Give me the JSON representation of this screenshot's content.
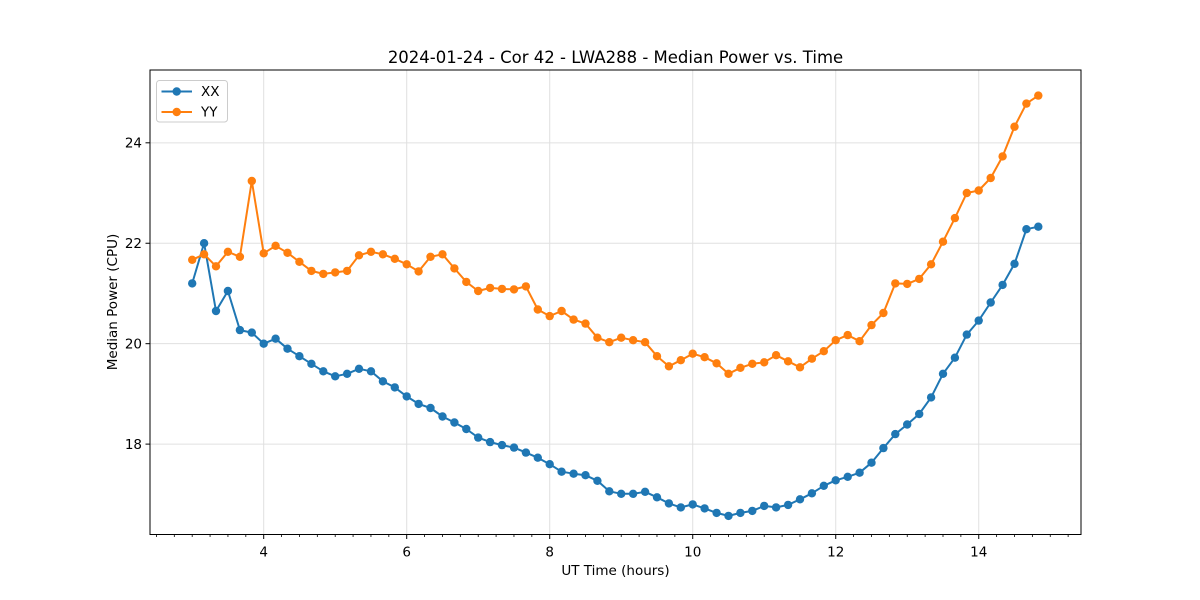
{
  "chart_data": {
    "type": "line",
    "title": "2024-01-24 - Cor 42 - LWA288 - Median Power vs. Time",
    "xlabel": "UT Time (hours)",
    "ylabel": "Median Power (CPU)",
    "xlim": [
      2.41,
      15.43
    ],
    "ylim": [
      16.2,
      25.45
    ],
    "x_major_ticks": [
      4,
      6,
      8,
      10,
      12,
      14
    ],
    "x_minor_step": 0.25,
    "y_major_ticks": [
      18,
      20,
      22,
      24
    ],
    "grid": true,
    "grid_color": "#e0e0e0",
    "background": "#ffffff",
    "legend_position": "upper left",
    "marker": "o",
    "x": {
      "start": 3.0,
      "step": 0.166667,
      "count": 72
    },
    "series": [
      {
        "name": "XX",
        "color": "#1f77b4",
        "values": [
          21.2,
          22.0,
          20.65,
          21.05,
          20.27,
          20.22,
          20.0,
          20.1,
          19.9,
          19.75,
          19.6,
          19.45,
          19.35,
          19.4,
          19.5,
          19.45,
          19.25,
          19.13,
          18.95,
          18.8,
          18.72,
          18.55,
          18.43,
          18.3,
          18.13,
          18.04,
          17.98,
          17.93,
          17.83,
          17.73,
          17.6,
          17.45,
          17.41,
          17.38,
          17.27,
          17.06,
          17.01,
          17.01,
          17.05,
          16.94,
          16.82,
          16.74,
          16.8,
          16.72,
          16.63,
          16.57,
          16.63,
          16.67,
          16.77,
          16.74,
          16.79,
          16.9,
          17.02,
          17.17,
          17.28,
          17.35,
          17.43,
          17.63,
          17.92,
          18.2,
          18.39,
          18.6,
          18.93,
          19.4,
          19.72,
          20.18,
          20.46,
          20.82,
          21.17,
          21.59,
          22.28,
          22.33
        ]
      },
      {
        "name": "YY",
        "color": "#ff7f0e",
        "values": [
          21.67,
          21.78,
          21.54,
          21.83,
          21.73,
          23.24,
          21.8,
          21.95,
          21.81,
          21.63,
          21.45,
          21.39,
          21.42,
          21.45,
          21.76,
          21.83,
          21.78,
          21.69,
          21.58,
          21.44,
          21.73,
          21.78,
          21.5,
          21.23,
          21.05,
          21.11,
          21.09,
          21.08,
          21.14,
          20.68,
          20.55,
          20.65,
          20.48,
          20.4,
          20.12,
          20.03,
          20.12,
          20.07,
          20.03,
          19.75,
          19.55,
          19.67,
          19.8,
          19.73,
          19.61,
          19.4,
          19.52,
          19.6,
          19.63,
          19.77,
          19.65,
          19.53,
          19.7,
          19.85,
          20.07,
          20.17,
          20.05,
          20.37,
          20.61,
          21.2,
          21.19,
          21.29,
          21.58,
          22.03,
          22.5,
          23.0,
          23.05,
          23.3,
          23.73,
          24.32,
          24.78,
          24.94
        ]
      }
    ]
  }
}
